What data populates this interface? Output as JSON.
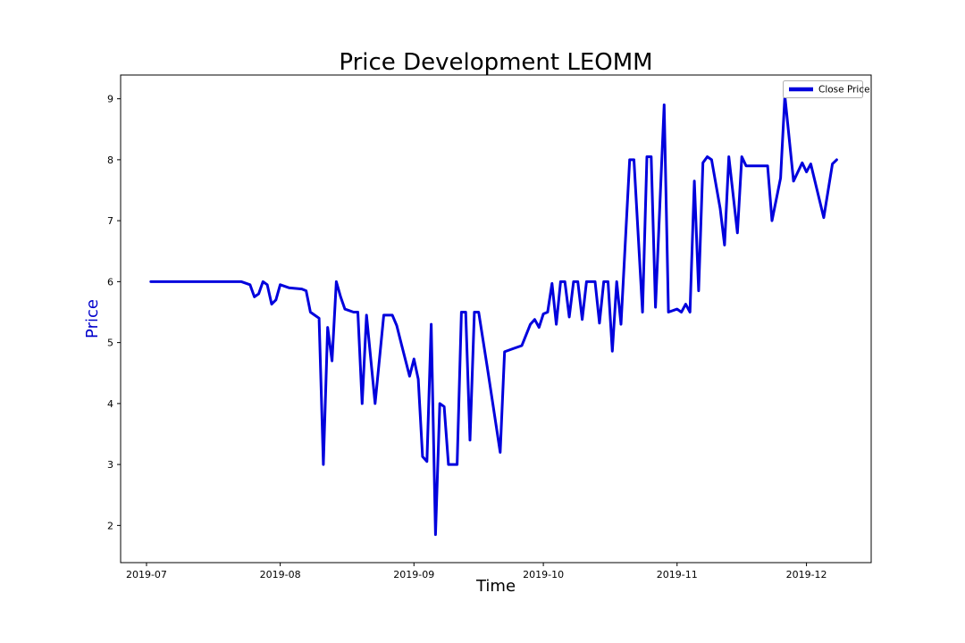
{
  "chart_data": {
    "type": "line",
    "title": "Price Development LEOMM",
    "xlabel": "Time",
    "ylabel": "Price",
    "grid": false,
    "legend_position": "upper right",
    "xlim": [
      "2019-06-25",
      "2019-12-16"
    ],
    "ylim": [
      1.39,
      9.39
    ],
    "y_ticks": [
      2,
      3,
      4,
      5,
      6,
      7,
      8,
      9
    ],
    "x_ticks": [
      {
        "date": "2019-07-01",
        "label": "2019-07"
      },
      {
        "date": "2019-08-01",
        "label": "2019-08"
      },
      {
        "date": "2019-09-01",
        "label": "2019-09"
      },
      {
        "date": "2019-10-01",
        "label": "2019-10"
      },
      {
        "date": "2019-11-01",
        "label": "2019-11"
      },
      {
        "date": "2019-12-01",
        "label": "2019-12"
      }
    ],
    "colors": {
      "line": "#0000dd",
      "ylabel": "#0000cc",
      "title": "#000000",
      "axis": "#000000",
      "tick_label": "#000000",
      "legend_border": "#b0b0b0",
      "legend_bg": "#ffffff"
    },
    "series": [
      {
        "name": "Close Price",
        "color": "#0000dd",
        "x": [
          "2019-07-02",
          "2019-07-08",
          "2019-07-15",
          "2019-07-23",
          "2019-07-25",
          "2019-07-26",
          "2019-07-27",
          "2019-07-28",
          "2019-07-29",
          "2019-07-30",
          "2019-07-31",
          "2019-08-01",
          "2019-08-03",
          "2019-08-06",
          "2019-08-07",
          "2019-08-08",
          "2019-08-09",
          "2019-08-10",
          "2019-08-11",
          "2019-08-12",
          "2019-08-13",
          "2019-08-14",
          "2019-08-15",
          "2019-08-16",
          "2019-08-18",
          "2019-08-19",
          "2019-08-20",
          "2019-08-21",
          "2019-08-23",
          "2019-08-25",
          "2019-08-27",
          "2019-08-28",
          "2019-08-29",
          "2019-08-31",
          "2019-09-01",
          "2019-09-02",
          "2019-09-03",
          "2019-09-04",
          "2019-09-05",
          "2019-09-06",
          "2019-09-07",
          "2019-09-08",
          "2019-09-09",
          "2019-09-11",
          "2019-09-12",
          "2019-09-13",
          "2019-09-14",
          "2019-09-15",
          "2019-09-16",
          "2019-09-18",
          "2019-09-21",
          "2019-09-22",
          "2019-09-24",
          "2019-09-26",
          "2019-09-28",
          "2019-09-29",
          "2019-09-30",
          "2019-10-01",
          "2019-10-02",
          "2019-10-03",
          "2019-10-04",
          "2019-10-05",
          "2019-10-06",
          "2019-10-07",
          "2019-10-08",
          "2019-10-09",
          "2019-10-10",
          "2019-10-11",
          "2019-10-13",
          "2019-10-14",
          "2019-10-15",
          "2019-10-16",
          "2019-10-17",
          "2019-10-18",
          "2019-10-19",
          "2019-10-21",
          "2019-10-22",
          "2019-10-24",
          "2019-10-25",
          "2019-10-26",
          "2019-10-27",
          "2019-10-29",
          "2019-10-30",
          "2019-11-01",
          "2019-11-02",
          "2019-11-03",
          "2019-11-04",
          "2019-11-05",
          "2019-11-06",
          "2019-11-07",
          "2019-11-08",
          "2019-11-09",
          "2019-11-11",
          "2019-11-12",
          "2019-11-13",
          "2019-11-15",
          "2019-11-16",
          "2019-11-17",
          "2019-11-20",
          "2019-11-22",
          "2019-11-23",
          "2019-11-25",
          "2019-11-26",
          "2019-11-28",
          "2019-11-30",
          "2019-12-01",
          "2019-12-02",
          "2019-12-05",
          "2019-12-07",
          "2019-12-08"
        ],
        "y": [
          6.0,
          6.0,
          6.0,
          6.0,
          5.95,
          5.75,
          5.8,
          6.0,
          5.95,
          5.63,
          5.7,
          5.95,
          5.9,
          5.88,
          5.85,
          5.5,
          5.45,
          5.4,
          3.0,
          5.25,
          4.7,
          6.0,
          5.75,
          5.55,
          5.5,
          5.5,
          4.0,
          5.45,
          4.0,
          5.45,
          5.45,
          5.28,
          5.0,
          4.45,
          4.73,
          4.4,
          3.13,
          3.05,
          5.3,
          1.85,
          4.0,
          3.95,
          3.0,
          3.0,
          5.5,
          5.5,
          3.4,
          5.5,
          5.5,
          4.6,
          3.2,
          4.85,
          4.9,
          4.95,
          5.3,
          5.38,
          5.25,
          5.47,
          5.5,
          5.97,
          5.3,
          6.0,
          6.0,
          5.42,
          6.0,
          6.0,
          5.38,
          6.0,
          6.0,
          5.32,
          6.0,
          6.0,
          4.86,
          6.0,
          5.3,
          8.0,
          8.0,
          5.5,
          8.05,
          8.05,
          5.58,
          8.9,
          5.5,
          5.55,
          5.5,
          5.63,
          5.5,
          7.65,
          5.85,
          7.95,
          8.05,
          8.0,
          7.2,
          6.6,
          8.05,
          6.8,
          8.05,
          7.9,
          7.9,
          7.9,
          7.0,
          7.7,
          9.05,
          7.65,
          7.95,
          7.8,
          7.93,
          7.05,
          7.93,
          8.0
        ]
      }
    ]
  }
}
